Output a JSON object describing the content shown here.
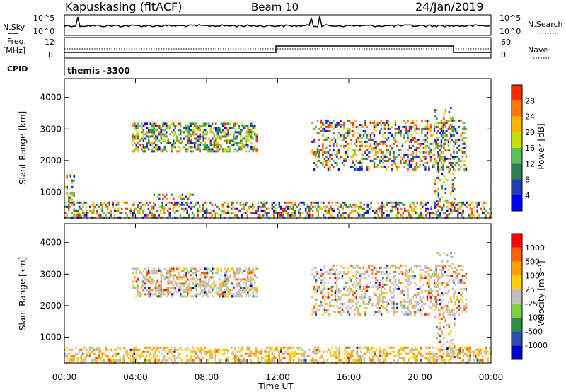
{
  "header": {
    "station": "Kapuskasing (fitACF)",
    "beam": "Beam 10",
    "date": "24/Jan/2019"
  },
  "status_panel": {
    "nsky_label": "N.Sky",
    "nsearch_label": "N.Search",
    "noise_ticks": [
      "10^5",
      "10^0"
    ],
    "freq_label_line1": "Freq.",
    "freq_label_line2": "[MHz]",
    "freq_ticks": [
      "12",
      "8"
    ],
    "nave_label": "Nave",
    "nave_ticks": [
      "60",
      "0"
    ],
    "cpid_label": "CPID",
    "cpid_value": "themis -3300"
  },
  "chart_data": [
    {
      "type": "heatmap",
      "name": "power",
      "ylabel": "Slant Range [km]",
      "xlabel": "",
      "x_ticks": [
        "00:00",
        "04:00",
        "08:00",
        "12:00",
        "16:00",
        "20:00",
        "00:00"
      ],
      "xlim_hours": [
        0,
        24
      ],
      "y_ticks": [
        1000,
        2000,
        3000,
        4000
      ],
      "ylim": [
        180,
        4600
      ],
      "colorbar": {
        "label": "Power [dB]",
        "ticks": [
          4,
          8,
          12,
          16,
          20,
          24,
          28
        ],
        "colors": [
          "#0000ff",
          "#1e3fb0",
          "#2e7f52",
          "#59c05a",
          "#c8e000",
          "#ffb400",
          "#ff7800",
          "#ff2a00"
        ]
      },
      "regions": [
        {
          "t0": 3.8,
          "t1": 10.8,
          "r0": 2300,
          "r1": 3200,
          "density": 0.55
        },
        {
          "t0": 13.9,
          "t1": 22.6,
          "r0": 1700,
          "r1": 3300,
          "density": 0.35
        },
        {
          "t0": 0.0,
          "t1": 24.0,
          "r0": 180,
          "r1": 700,
          "density": 0.45
        },
        {
          "t0": 5.0,
          "t1": 7.2,
          "r0": 750,
          "r1": 950,
          "density": 0.35
        },
        {
          "t0": 0.0,
          "t1": 0.5,
          "r0": 700,
          "r1": 1600,
          "density": 0.25
        },
        {
          "t0": 20.8,
          "t1": 21.9,
          "r0": 300,
          "r1": 3700,
          "density": 0.2
        }
      ]
    },
    {
      "type": "heatmap",
      "name": "velocity",
      "ylabel": "Slant Range [km]",
      "xlabel": "Time UT",
      "x_ticks": [
        "00:00",
        "04:00",
        "08:00",
        "12:00",
        "16:00",
        "20:00",
        "00:00"
      ],
      "xlim_hours": [
        0,
        24
      ],
      "y_ticks": [
        1000,
        2000,
        3000,
        4000
      ],
      "ylim": [
        180,
        4600
      ],
      "colorbar": {
        "label": "Velocity [m s⁻¹]",
        "ticks": [
          1000,
          500,
          100,
          25,
          -25,
          -100,
          -500,
          -1000
        ],
        "colors": [
          "#0000d0",
          "#2a4fb0",
          "#2e8f40",
          "#7ed040",
          "#c0c0c0",
          "#ffd000",
          "#ffa000",
          "#ff6000",
          "#ff0000"
        ]
      },
      "regions": [
        {
          "t0": 3.8,
          "t1": 10.8,
          "r0": 2300,
          "r1": 3200,
          "density": 0.55
        },
        {
          "t0": 13.9,
          "t1": 22.6,
          "r0": 1700,
          "r1": 3300,
          "density": 0.35
        },
        {
          "t0": 0.0,
          "t1": 24.0,
          "r0": 180,
          "r1": 700,
          "density": 0.45
        },
        {
          "t0": 20.8,
          "t1": 21.9,
          "r0": 300,
          "r1": 3700,
          "density": 0.2
        }
      ]
    }
  ]
}
